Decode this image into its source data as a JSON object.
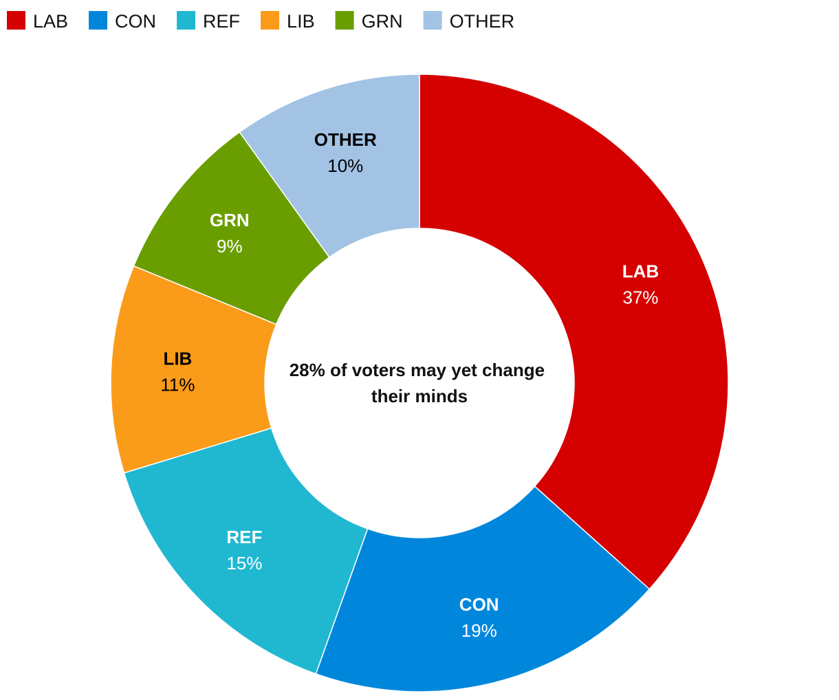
{
  "chart_data": {
    "type": "pie",
    "donut": true,
    "title": "",
    "center_label": [
      "28% of voters may yet change",
      "their minds"
    ],
    "legend_position": "top-left",
    "slices": [
      {
        "name": "LAB",
        "value": 37,
        "label": "37%",
        "color": "#d50000",
        "text_color": "#ffffff"
      },
      {
        "name": "CON",
        "value": 19,
        "label": "19%",
        "color": "#0087dc",
        "text_color": "#ffffff"
      },
      {
        "name": "REF",
        "value": 15,
        "label": "15%",
        "color": "#20b8d0",
        "text_color": "#ffffff"
      },
      {
        "name": "LIB",
        "value": 11,
        "label": "11%",
        "color": "#fb9b1a",
        "text_color": "#000000"
      },
      {
        "name": "GRN",
        "value": 9,
        "label": "9%",
        "color": "#6a9e00",
        "text_color": "#ffffff"
      },
      {
        "name": "OTHER",
        "value": 10,
        "label": "10%",
        "color": "#a2c3e4",
        "text_color": "#000000"
      }
    ]
  }
}
